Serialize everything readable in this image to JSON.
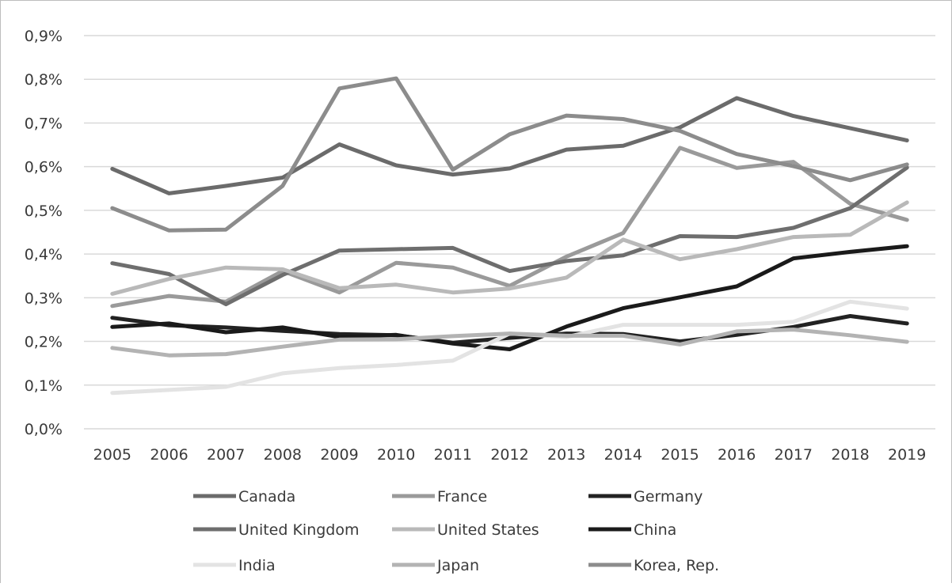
{
  "chart_data": {
    "type": "line",
    "title": "",
    "xlabel": "",
    "ylabel": "",
    "ylim": [
      0,
      0.9
    ],
    "yticks": [
      "0,0%",
      "0,1%",
      "0,2%",
      "0,3%",
      "0,4%",
      "0,5%",
      "0,6%",
      "0,7%",
      "0,8%",
      "0,9%"
    ],
    "grid": true,
    "legend_position": "bottom",
    "x": [
      "2005",
      "2006",
      "2007",
      "2008",
      "2009",
      "2010",
      "2011",
      "2012",
      "2013",
      "2014",
      "2015",
      "2016",
      "2017",
      "2018",
      "2019"
    ],
    "series": [
      {
        "name": "Canada",
        "color": "#6b6b6b",
        "values": [
          0.595,
          0.539,
          0.556,
          0.575,
          0.651,
          0.603,
          0.582,
          0.596,
          0.639,
          0.648,
          0.69,
          0.757,
          0.716,
          0.688,
          0.66
        ]
      },
      {
        "name": "France",
        "color": "#9a9a9a",
        "values": [
          0.281,
          0.304,
          0.291,
          0.361,
          0.312,
          0.38,
          0.369,
          0.327,
          0.394,
          0.448,
          0.643,
          0.597,
          0.611,
          0.515,
          0.478
        ]
      },
      {
        "name": "Germany",
        "color": "#222222",
        "values": [
          0.254,
          0.237,
          0.232,
          0.224,
          0.217,
          0.214,
          0.197,
          0.208,
          0.218,
          0.217,
          0.2,
          0.215,
          0.233,
          0.258,
          0.241
        ]
      },
      {
        "name": "United Kingdom",
        "color": "#6e6e6e",
        "values": [
          0.379,
          0.354,
          0.285,
          0.352,
          0.408,
          0.411,
          0.414,
          0.361,
          0.384,
          0.397,
          0.441,
          0.439,
          0.46,
          0.505,
          0.598
        ]
      },
      {
        "name": "United States",
        "color": "#b9b9b9",
        "values": [
          0.309,
          0.343,
          0.369,
          0.365,
          0.322,
          0.33,
          0.312,
          0.321,
          0.346,
          0.433,
          0.388,
          0.411,
          0.439,
          0.444,
          0.518
        ]
      },
      {
        "name": "China",
        "color": "#1a1a1a",
        "values": [
          0.233,
          0.241,
          0.221,
          0.232,
          0.21,
          0.215,
          0.195,
          0.182,
          0.234,
          0.276,
          0.301,
          0.326,
          0.39,
          0.405,
          0.418
        ]
      },
      {
        "name": "India",
        "color": "#e3e3e3",
        "values": [
          0.082,
          0.089,
          0.096,
          0.127,
          0.139,
          0.146,
          0.156,
          0.218,
          0.21,
          0.238,
          0.238,
          0.238,
          0.245,
          0.291,
          0.275
        ]
      },
      {
        "name": "Japan",
        "color": "#b3b3b3",
        "values": [
          0.185,
          0.168,
          0.171,
          0.188,
          0.204,
          0.205,
          0.212,
          0.218,
          0.213,
          0.213,
          0.193,
          0.223,
          0.227,
          0.214,
          0.199
        ]
      },
      {
        "name": "Korea, Rep.",
        "color": "#8c8c8c",
        "values": [
          0.505,
          0.454,
          0.456,
          0.556,
          0.779,
          0.802,
          0.593,
          0.674,
          0.717,
          0.709,
          0.682,
          0.629,
          0.601,
          0.569,
          0.605
        ]
      }
    ]
  }
}
